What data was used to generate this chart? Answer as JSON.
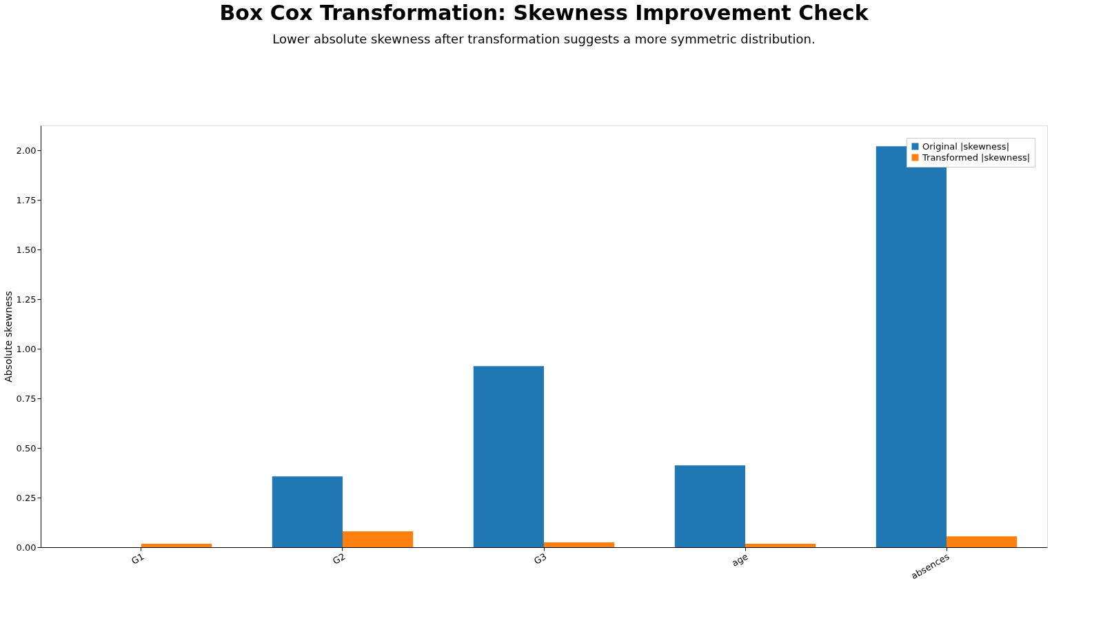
{
  "chart_data": {
    "type": "bar",
    "title": "Box Cox Transformation: Skewness Improvement Check",
    "subtitle": "Lower absolute skewness after transformation suggests a more symmetric distribution.",
    "ylabel": "Absolute skewness",
    "categories": [
      "G1",
      "G2",
      "G3",
      "age",
      "absences"
    ],
    "series": [
      {
        "name": "Original |skewness|",
        "color": "#1f77b4",
        "values": [
          0.0,
          0.357,
          0.912,
          0.412,
          2.02
        ]
      },
      {
        "name": "Transformed |skewness|",
        "color": "#ff7f0e",
        "values": [
          0.017,
          0.08,
          0.024,
          0.017,
          0.055
        ]
      }
    ],
    "ylim": [
      0,
      2.125
    ],
    "yticks": [
      {
        "value": 0,
        "label": "0.00"
      },
      0.25,
      {
        "value": 0.5,
        "label": "0.50"
      },
      0.75,
      {
        "value": 1,
        "label": "1.00"
      },
      1.25,
      {
        "value": 1.5,
        "label": "1.50"
      },
      1.75,
      {
        "value": 2,
        "label": "2.00"
      }
    ],
    "grid": false,
    "legend": "top right"
  }
}
